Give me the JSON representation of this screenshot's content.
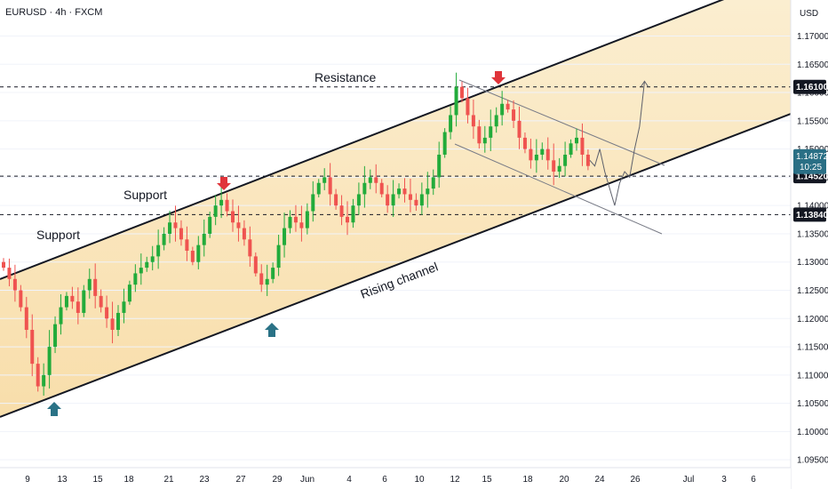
{
  "header": {
    "symbol": "EURUSD · 4h · FXCM"
  },
  "price_axis": {
    "currency": "USD",
    "ticks": [
      "1.17000",
      "1.16500",
      "1.16000",
      "1.15500",
      "1.15000",
      "1.14500",
      "1.14000",
      "1.13500",
      "1.13000",
      "1.12500",
      "1.12000",
      "1.11500",
      "1.11000",
      "1.10500",
      "1.10000",
      "1.09500"
    ]
  },
  "time_axis": {
    "ticks": [
      "9",
      "13",
      "15",
      "18",
      "21",
      "23",
      "27",
      "29",
      "Jun",
      "4",
      "6",
      "10",
      "12",
      "15",
      "18",
      "20",
      "24",
      "26",
      "Jul",
      "3",
      "6"
    ]
  },
  "levels": [
    {
      "price": "1.16100",
      "bg": "#131722",
      "fg": "#ffffff"
    },
    {
      "price": "1.14520",
      "bg": "#131722",
      "fg": "#ffffff"
    },
    {
      "price": "1.13840",
      "bg": "#131722",
      "fg": "#ffffff"
    }
  ],
  "current_price": {
    "price": "1.14872",
    "countdown": "10:25",
    "bg": "#2a6f85",
    "fg": "#ffffff"
  },
  "annotations": {
    "resistance": "Resistance",
    "support_upper": "Support",
    "support_lower": "Support",
    "rising_channel": "Rising channel"
  },
  "colors": {
    "bull": "#26a69a",
    "bull_body": "#22ab3b",
    "bear": "#ef5350",
    "channel_fill_top": "#fbeed0",
    "channel_fill_bottom": "#f8dca6",
    "arrow_down": "#e0343a",
    "arrow_up": "#2a7286",
    "line": "#131722"
  },
  "chart_data": {
    "type": "candlestick",
    "title": "EURUSD · 4h · FXCM",
    "ylim": [
      1.093,
      1.174
    ],
    "y_unit": "USD",
    "horizontal_levels": [
      1.161,
      1.1452,
      1.1384
    ],
    "close_path": [
      1.129,
      1.127,
      1.125,
      1.122,
      1.118,
      1.112,
      1.108,
      1.11,
      1.115,
      1.119,
      1.122,
      1.124,
      1.123,
      1.121,
      1.125,
      1.127,
      1.124,
      1.122,
      1.12,
      1.118,
      1.121,
      1.123,
      1.126,
      1.128,
      1.129,
      1.13,
      1.131,
      1.133,
      1.135,
      1.137,
      1.136,
      1.134,
      1.132,
      1.13,
      1.133,
      1.135,
      1.138,
      1.14,
      1.141,
      1.139,
      1.137,
      1.136,
      1.134,
      1.131,
      1.128,
      1.126,
      1.127,
      1.129,
      1.133,
      1.136,
      1.138,
      1.137,
      1.136,
      1.139,
      1.142,
      1.144,
      1.145,
      1.142,
      1.14,
      1.138,
      1.137,
      1.14,
      1.142,
      1.144,
      1.145,
      1.144,
      1.142,
      1.14,
      1.142,
      1.143,
      1.142,
      1.141,
      1.14,
      1.142,
      1.143,
      1.145,
      1.149,
      1.153,
      1.156,
      1.161,
      1.159,
      1.156,
      1.154,
      1.151,
      1.152,
      1.154,
      1.156,
      1.158,
      1.157,
      1.155,
      1.152,
      1.15,
      1.148,
      1.149,
      1.15,
      1.148,
      1.146,
      1.147,
      1.149,
      1.151,
      1.152,
      1.149,
      1.147
    ],
    "projection": [
      1.148,
      1.147,
      1.15,
      1.146,
      1.143,
      1.14,
      1.144,
      1.146,
      1.145,
      1.15,
      1.154,
      1.162
    ]
  }
}
